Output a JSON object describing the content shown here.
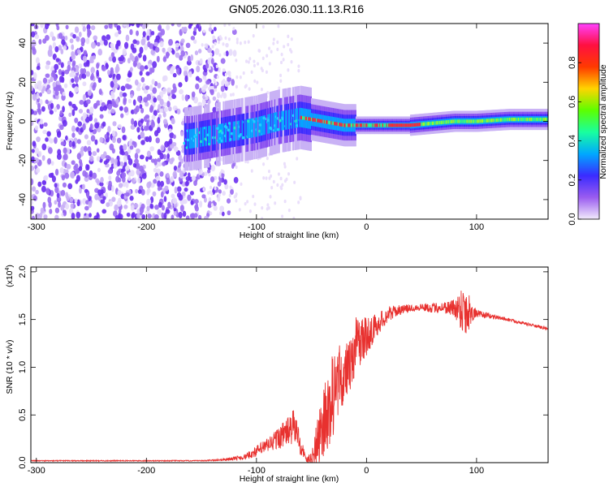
{
  "title": "GN05.2026.030.11.13.R16",
  "chart_data": [
    {
      "type": "heatmap",
      "name": "spectrogram",
      "xlabel": "Height of straight line (km)",
      "ylabel": "Frequency (Hz)",
      "xlim": [
        -305,
        165
      ],
      "ylim": [
        -50,
        50
      ],
      "x_ticks": [
        "-300",
        "-200",
        "-100",
        "0",
        "100"
      ],
      "x_tick_values": [
        -300,
        -200,
        -100,
        0,
        100
      ],
      "y_ticks": [
        "40",
        "20",
        "0",
        "-20",
        "-40"
      ],
      "y_tick_values": [
        40,
        20,
        0,
        -20,
        -40
      ],
      "ridge": {
        "description_points_x": [
          -160,
          -130,
          -100,
          -80,
          -60,
          -40,
          -20,
          0,
          20,
          40,
          60,
          80,
          100,
          130,
          165
        ],
        "frequency_hz": [
          -9,
          -6,
          -3,
          0,
          2,
          0,
          -2,
          -2,
          -2,
          -2,
          -1,
          0,
          0,
          1,
          1
        ]
      },
      "colorbar": {
        "label": "Normalized spectral amplitude",
        "range": [
          0,
          1
        ],
        "ticks": [
          "0.0",
          "0.2",
          "0.4",
          "0.6",
          "0.8"
        ],
        "tick_values": [
          0,
          0.2,
          0.4,
          0.6,
          0.8
        ],
        "colors": [
          "#f2eafb",
          "#9a5cf0",
          "#3b2bff",
          "#00a8ff",
          "#18ffa0",
          "#5cff00",
          "#ffd400",
          "#ff3a00",
          "#ff1040",
          "#ff40ff"
        ]
      }
    },
    {
      "type": "line",
      "name": "snr",
      "xlabel": "Height of straight line (km)",
      "ylabel": "SNR (10 * v/v)",
      "y_multiplier": "(x10",
      "y_multiplier_exp": "4",
      "y_multiplier_close": ")",
      "xlim": [
        -305,
        165
      ],
      "ylim": [
        0,
        2.05
      ],
      "x_ticks": [
        "-300",
        "-200",
        "-100",
        "0",
        "100"
      ],
      "x_tick_values": [
        -300,
        -200,
        -100,
        0,
        100
      ],
      "y_ticks": [
        "2.0",
        "1.5",
        "1.0",
        "0.5",
        "0.0"
      ],
      "y_tick_values": [
        2.0,
        1.5,
        1.0,
        0.5,
        0.0
      ],
      "color": "#e8312f",
      "envelope": {
        "x": [
          -305,
          -150,
          -130,
          -110,
          -100,
          -90,
          -80,
          -70,
          -65,
          -60,
          -55,
          -50,
          -45,
          -40,
          -35,
          -30,
          -25,
          -20,
          -15,
          -10,
          -5,
          0,
          10,
          20,
          30,
          40,
          50,
          60,
          70,
          80,
          85,
          90,
          95,
          100,
          120,
          140,
          165
        ],
        "y": [
          0.02,
          0.02,
          0.03,
          0.06,
          0.12,
          0.18,
          0.26,
          0.34,
          0.38,
          0.18,
          0.05,
          0.08,
          0.35,
          0.6,
          0.85,
          1.0,
          1.1,
          1.15,
          1.2,
          1.25,
          1.28,
          1.32,
          1.45,
          1.56,
          1.6,
          1.62,
          1.63,
          1.62,
          1.63,
          1.62,
          1.62,
          1.6,
          1.58,
          1.56,
          1.52,
          1.47,
          1.4
        ],
        "noise": [
          0.005,
          0.005,
          0.01,
          0.03,
          0.06,
          0.08,
          0.12,
          0.16,
          0.2,
          0.1,
          0.03,
          0.1,
          0.3,
          0.45,
          0.55,
          0.55,
          0.45,
          0.4,
          0.35,
          0.3,
          0.25,
          0.2,
          0.12,
          0.08,
          0.05,
          0.04,
          0.04,
          0.05,
          0.06,
          0.1,
          0.2,
          0.35,
          0.12,
          0.04,
          0.02,
          0.015,
          0.015
        ]
      }
    }
  ]
}
